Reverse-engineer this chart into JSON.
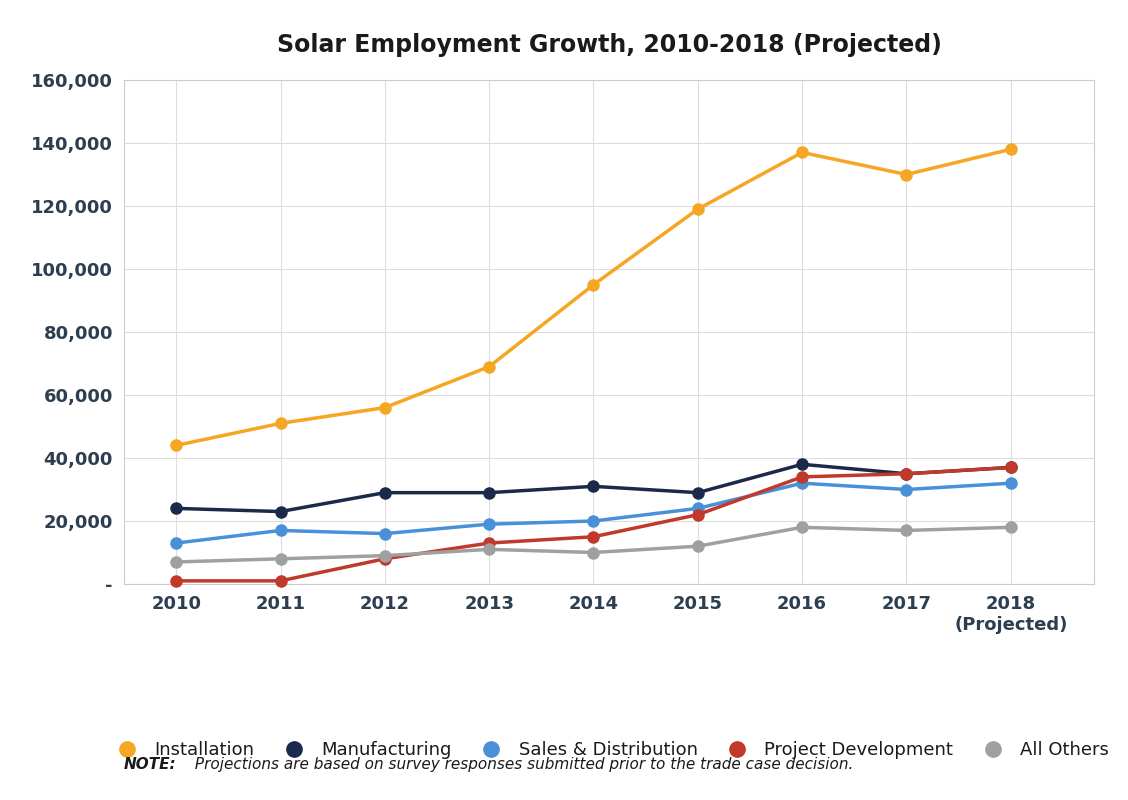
{
  "title": "Solar Employment Growth, 2010-2018 (Projected)",
  "years": [
    2010,
    2011,
    2012,
    2013,
    2014,
    2015,
    2016,
    2017,
    2018
  ],
  "series": {
    "Installation": {
      "values": [
        44000,
        51000,
        56000,
        69000,
        95000,
        119000,
        137000,
        130000,
        138000
      ],
      "color": "#F5A623",
      "marker": "o"
    },
    "Manufacturing": {
      "values": [
        24000,
        23000,
        29000,
        29000,
        31000,
        29000,
        38000,
        35000,
        37000
      ],
      "color": "#1B2A4A",
      "marker": "o"
    },
    "Sales & Distribution": {
      "values": [
        13000,
        17000,
        16000,
        19000,
        20000,
        24000,
        32000,
        30000,
        32000
      ],
      "color": "#4A90D9",
      "marker": "o"
    },
    "Project Development": {
      "values": [
        1000,
        1000,
        8000,
        13000,
        15000,
        22000,
        34000,
        35000,
        37000
      ],
      "color": "#C0392B",
      "marker": "o"
    },
    "All Others": {
      "values": [
        7000,
        8000,
        9000,
        11000,
        10000,
        12000,
        18000,
        17000,
        18000
      ],
      "color": "#A0A0A0",
      "marker": "o"
    }
  },
  "ylim": [
    0,
    160000
  ],
  "yticks": [
    0,
    20000,
    40000,
    60000,
    80000,
    100000,
    120000,
    140000,
    160000
  ],
  "background_color": "#FFFFFF",
  "plot_bg_color": "#FFFFFF",
  "grid_color": "#DDDDDD",
  "note_bold": "NOTE:",
  "note_italic": " Projections are based on survey responses submitted prior to the trade case decision.",
  "title_fontsize": 17,
  "tick_fontsize": 13,
  "legend_fontsize": 13
}
